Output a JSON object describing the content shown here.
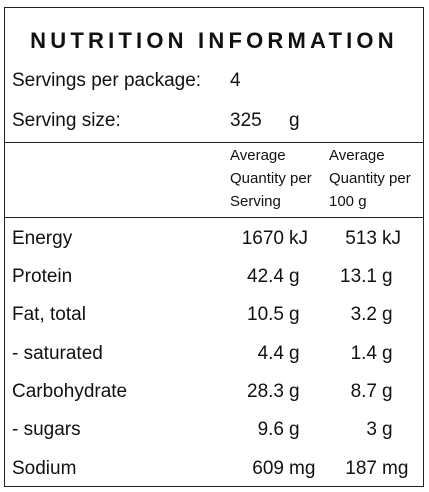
{
  "title": "NUTRITION INFORMATION",
  "servings": {
    "label": "Servings per package:",
    "value": "4"
  },
  "serving_size": {
    "label": "Serving size:",
    "value": "325",
    "unit": "g"
  },
  "headers": {
    "per_serving": [
      "Average",
      "Quantity per",
      "Serving"
    ],
    "per_100g": [
      "Average",
      "Quantity per",
      "100 g"
    ]
  },
  "rows": [
    {
      "name": "Energy",
      "serving": "1670",
      "serving_unit": "kJ",
      "per100": "513",
      "per100_unit": "kJ"
    },
    {
      "name": "Protein",
      "serving": "42.4",
      "serving_unit": "g",
      "per100": "13.1",
      "per100_unit": "g"
    },
    {
      "name": "Fat, total",
      "serving": "10.5",
      "serving_unit": "g",
      "per100": "3.2",
      "per100_unit": "g"
    },
    {
      "name": "- saturated",
      "serving": "4.4",
      "serving_unit": "g",
      "per100": "1.4",
      "per100_unit": "g"
    },
    {
      "name": "Carbohydrate",
      "serving": "28.3",
      "serving_unit": "g",
      "per100": "8.7",
      "per100_unit": "g"
    },
    {
      "name": "- sugars",
      "serving": "9.6",
      "serving_unit": "g",
      "per100": "3",
      "per100_unit": "g"
    },
    {
      "name": "Sodium",
      "serving": "609",
      "serving_unit": "mg",
      "per100": "187",
      "per100_unit": "mg"
    }
  ]
}
